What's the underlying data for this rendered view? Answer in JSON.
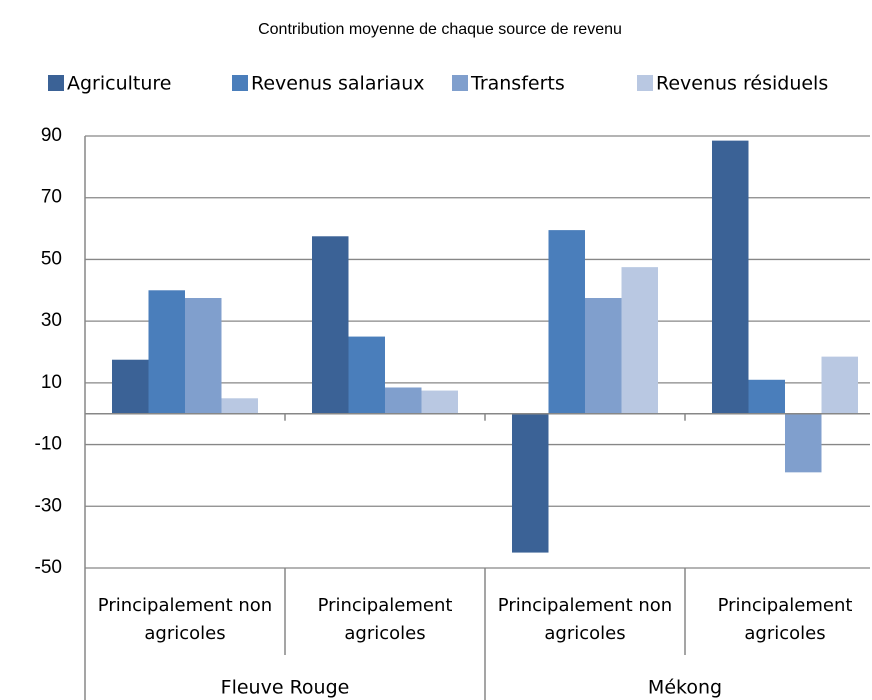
{
  "chart_data": {
    "type": "bar",
    "title": "Contribution moyenne de chaque source de revenu",
    "categories": [
      "Principalement non agricoles",
      "Principalement agricoles",
      "Principalement non agricoles",
      "Principalement agricoles"
    ],
    "category_groups": [
      "Fleuve Rouge",
      "Mékong"
    ],
    "series": [
      {
        "name": "Agriculture",
        "color": "#3b6296",
        "values": [
          17.5,
          57.5,
          -45,
          88.5
        ]
      },
      {
        "name": "Revenus salariaux",
        "color": "#4a7ebb",
        "values": [
          40,
          25,
          59.5,
          11
        ]
      },
      {
        "name": "Transferts",
        "color": "#809fcd",
        "values": [
          37.5,
          8.5,
          37.5,
          -19
        ]
      },
      {
        "name": "Revenus résiduels",
        "color": "#b9c8e2",
        "values": [
          5,
          7.5,
          47.5,
          18.5
        ]
      }
    ],
    "ylim": [
      -50,
      90
    ],
    "yticks": [
      90,
      70,
      50,
      30,
      10,
      -10,
      -30,
      -50
    ],
    "grid": true,
    "legend": "top"
  }
}
